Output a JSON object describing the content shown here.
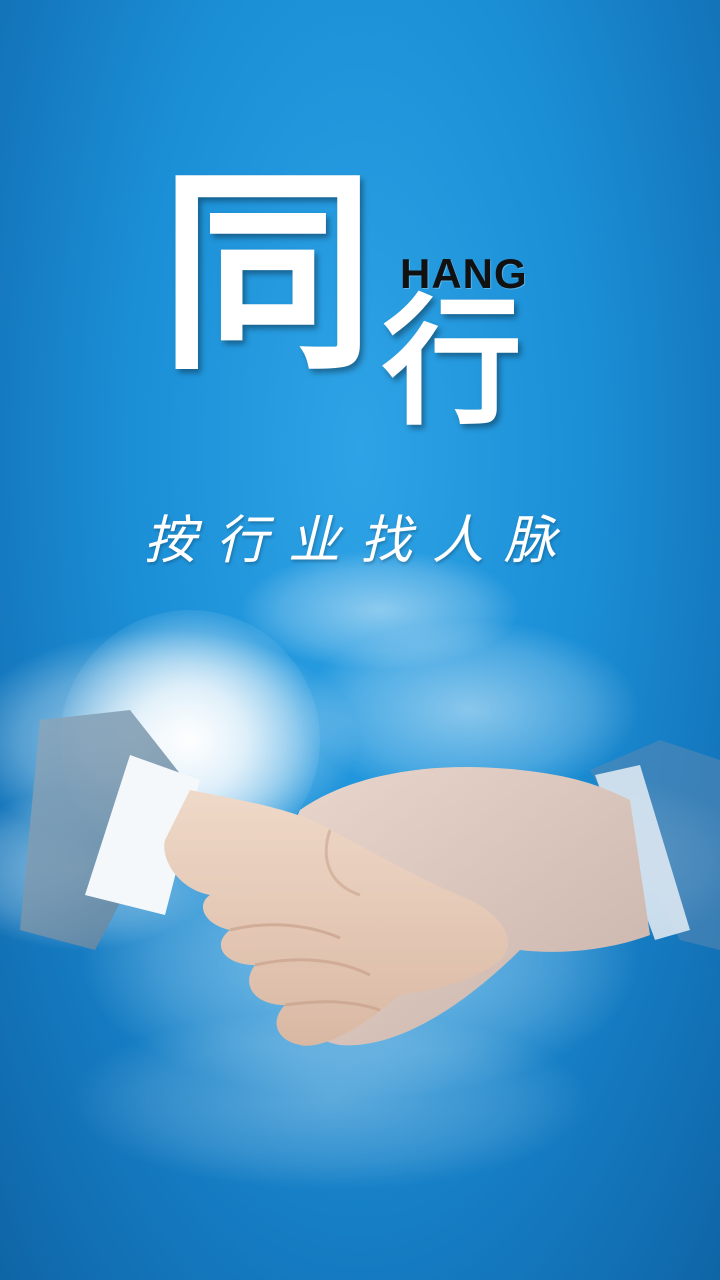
{
  "logo": {
    "char_main": "同",
    "char_secondary": "行",
    "latin": "HANG"
  },
  "slogan": "按行业找人脉",
  "colors": {
    "background_top": "#2ea3e6",
    "background_bottom": "#0f65a6",
    "logo_text": "#ffffff",
    "latin_text": "#111111"
  }
}
